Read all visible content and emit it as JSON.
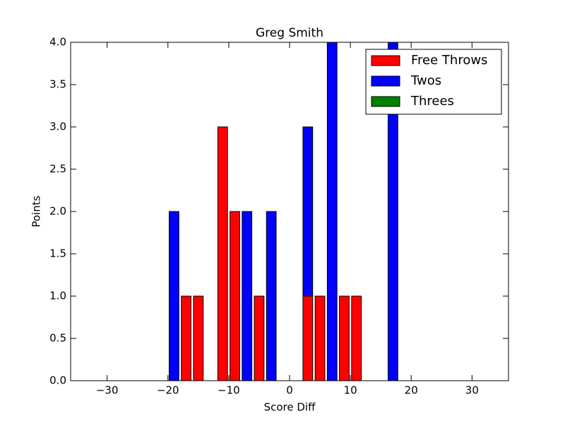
{
  "chart_data": {
    "type": "stacked-bar",
    "title": "Greg Smith",
    "xlabel": "Score Diff",
    "ylabel": "Points",
    "x": [
      -35,
      -33,
      -31,
      -29,
      -27,
      -25,
      -23,
      -21,
      -19,
      -17,
      -15,
      -13,
      -11,
      -9,
      -7,
      -5,
      -3,
      -1,
      1,
      3,
      5,
      7,
      9,
      11,
      13,
      15,
      17,
      19,
      21,
      23,
      25,
      27,
      29,
      31,
      33,
      35
    ],
    "series": [
      {
        "name": "Free Throws",
        "color": "#ff0000",
        "values": [
          0,
          0,
          0,
          0,
          0,
          0,
          0,
          0,
          0,
          1,
          1,
          0,
          3,
          2,
          0,
          1,
          0,
          0,
          0,
          1,
          1,
          0,
          1,
          1,
          0,
          0,
          0,
          0,
          0,
          0,
          0,
          0,
          0,
          0,
          0,
          0
        ]
      },
      {
        "name": "Twos",
        "color": "#0000ff",
        "values": [
          0,
          0,
          0,
          0,
          0,
          0,
          0,
          0,
          2,
          0,
          0,
          0,
          0,
          0,
          2,
          0,
          2,
          0,
          0,
          2,
          0,
          4,
          0,
          0,
          0,
          0,
          4,
          0,
          0,
          0,
          0,
          0,
          0,
          0,
          0,
          0
        ]
      },
      {
        "name": "Threes",
        "color": "#008000",
        "values": [
          0,
          0,
          0,
          0,
          0,
          0,
          0,
          0,
          0,
          0,
          0,
          0,
          0,
          0,
          0,
          0,
          0,
          0,
          0,
          0,
          0,
          0,
          0,
          0,
          0,
          0,
          0,
          0,
          0,
          0,
          0,
          0,
          0,
          0,
          0,
          0
        ]
      }
    ],
    "xlim": [
      -36,
      36
    ],
    "xticks": [
      {
        "value": -30,
        "label": "−30"
      },
      {
        "value": -20,
        "label": "−20"
      },
      {
        "value": -10,
        "label": "−10"
      },
      0,
      10,
      20,
      30
    ],
    "ylim": [
      0,
      4
    ],
    "yticks": [
      {
        "value": 0,
        "label": "0.0"
      },
      {
        "value": 0.5,
        "label": "0.5"
      },
      {
        "value": 1,
        "label": "1.0"
      },
      {
        "value": 1.5,
        "label": "1.5"
      },
      {
        "value": 2,
        "label": "2.0"
      },
      {
        "value": 2.5,
        "label": "2.5"
      },
      {
        "value": 3,
        "label": "3.0"
      },
      {
        "value": 3.5,
        "label": "3.5"
      },
      {
        "value": 4,
        "label": "4.0"
      }
    ],
    "legend": "upper right"
  }
}
